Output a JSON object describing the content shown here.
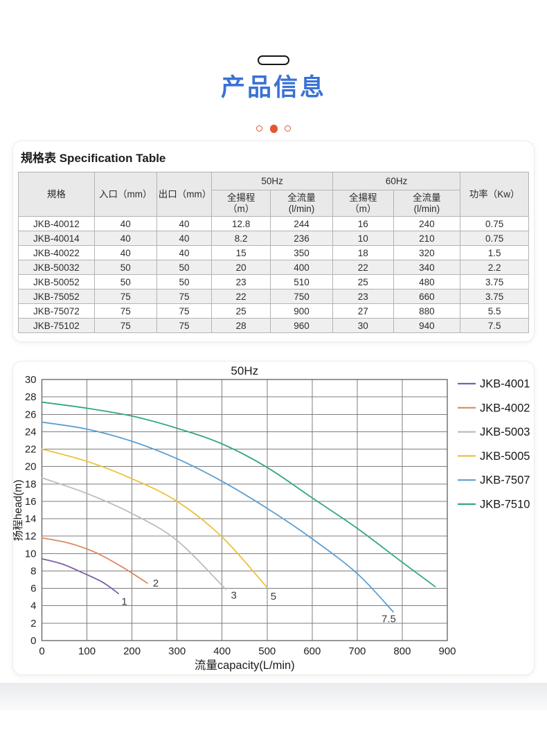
{
  "header": {
    "title": "产品信息",
    "title_color": "#3a72d4",
    "dots_color": "#e2582f"
  },
  "spec": {
    "heading": "規格表 Specification Table",
    "table": {
      "col_model": "規格",
      "col_inlet": "入口（mm）",
      "col_outlet": "出口（mm）",
      "group_50hz": "50Hz",
      "group_60hz": "60Hz",
      "sub_head_50": "全揚程\n（m）",
      "sub_flow_50": "全流量\n(l/min)",
      "sub_head_60": "全揚程\n（m）",
      "sub_flow_60": "全流量\n(l/min)",
      "col_power": "功率（Kw）",
      "rows": [
        [
          "JKB-40012",
          "40",
          "40",
          "12.8",
          "244",
          "16",
          "240",
          "0.75"
        ],
        [
          "JKB-40014",
          "40",
          "40",
          "8.2",
          "236",
          "10",
          "210",
          "0.75"
        ],
        [
          "JKB-40022",
          "40",
          "40",
          "15",
          "350",
          "18",
          "320",
          "1.5"
        ],
        [
          "JKB-50032",
          "50",
          "50",
          "20",
          "400",
          "22",
          "340",
          "2.2"
        ],
        [
          "JKB-50052",
          "50",
          "50",
          "23",
          "510",
          "25",
          "480",
          "3.75"
        ],
        [
          "JKB-75052",
          "75",
          "75",
          "22",
          "750",
          "23",
          "660",
          "3.75"
        ],
        [
          "JKB-75072",
          "75",
          "75",
          "25",
          "900",
          "27",
          "880",
          "5.5"
        ],
        [
          "JKB-75102",
          "75",
          "75",
          "28",
          "960",
          "30",
          "940",
          "7.5"
        ]
      ]
    }
  },
  "chart_data": {
    "type": "line",
    "title": "50Hz",
    "xlabel": "流量capacity(L/min)",
    "ylabel": "扬程head(m)",
    "xlim": [
      0,
      900
    ],
    "ylim": [
      0,
      30
    ],
    "xtick_step": 100,
    "ytick_step": 2,
    "grid": true,
    "legend_position": "right",
    "grid_color": "#7d7d7d",
    "series": [
      {
        "name": "JKB-4001",
        "color": "#7c5fa8",
        "points": [
          [
            0,
            9.4
          ],
          [
            45,
            8.8
          ],
          [
            90,
            7.8
          ],
          [
            135,
            6.7
          ],
          [
            170,
            5.4
          ]
        ],
        "end_label": "1",
        "end_label_at": [
          183,
          4.1
        ]
      },
      {
        "name": "JKB-4002",
        "color": "#dc8a5e",
        "points": [
          [
            0,
            11.8
          ],
          [
            60,
            11.2
          ],
          [
            120,
            10.1
          ],
          [
            180,
            8.4
          ],
          [
            234,
            6.6
          ]
        ],
        "end_label": "2",
        "end_label_at": [
          253,
          6.2
        ]
      },
      {
        "name": "JKB-5003",
        "color": "#bcbcbc",
        "points": [
          [
            0,
            18.7
          ],
          [
            100,
            16.9
          ],
          [
            200,
            14.6
          ],
          [
            300,
            11.5
          ],
          [
            408,
            5.9
          ]
        ],
        "end_label": "3",
        "end_label_at": [
          426,
          4.8
        ]
      },
      {
        "name": "JKB-5005",
        "color": "#ecc23c",
        "points": [
          [
            0,
            22.0
          ],
          [
            100,
            20.6
          ],
          [
            200,
            18.6
          ],
          [
            300,
            16.0
          ],
          [
            400,
            11.9
          ],
          [
            500,
            6.1
          ]
        ],
        "end_label": "5",
        "end_label_at": [
          514,
          4.7
        ]
      },
      {
        "name": "JKB-7507",
        "color": "#5a9fd4",
        "points": [
          [
            0,
            25.1
          ],
          [
            100,
            24.3
          ],
          [
            200,
            22.9
          ],
          [
            300,
            20.9
          ],
          [
            400,
            18.3
          ],
          [
            500,
            15.2
          ],
          [
            600,
            11.7
          ],
          [
            700,
            7.7
          ],
          [
            780,
            3.3
          ]
        ],
        "end_label": "7.5",
        "end_label_at": [
          770,
          2.1
        ]
      },
      {
        "name": "JKB-7510",
        "color": "#33a87c",
        "points": [
          [
            0,
            27.4
          ],
          [
            100,
            26.7
          ],
          [
            200,
            25.8
          ],
          [
            300,
            24.4
          ],
          [
            400,
            22.6
          ],
          [
            500,
            19.9
          ],
          [
            600,
            16.4
          ],
          [
            700,
            12.9
          ],
          [
            800,
            9.0
          ],
          [
            873,
            6.2
          ]
        ],
        "end_label": "",
        "end_label_at": null
      }
    ]
  }
}
